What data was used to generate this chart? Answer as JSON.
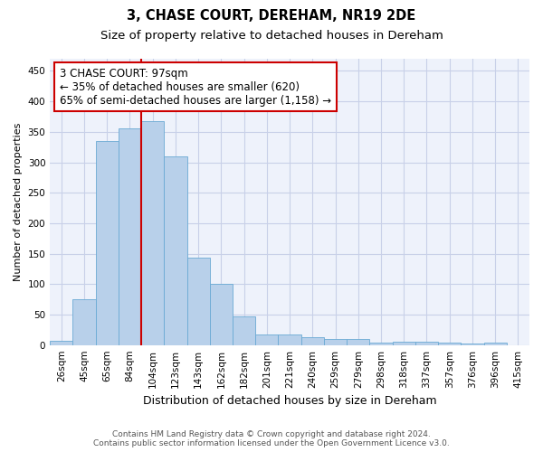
{
  "title": "3, CHASE COURT, DEREHAM, NR19 2DE",
  "subtitle": "Size of property relative to detached houses in Dereham",
  "xlabel": "Distribution of detached houses by size in Dereham",
  "ylabel": "Number of detached properties",
  "categories": [
    "26sqm",
    "45sqm",
    "65sqm",
    "84sqm",
    "104sqm",
    "123sqm",
    "143sqm",
    "162sqm",
    "182sqm",
    "201sqm",
    "221sqm",
    "240sqm",
    "259sqm",
    "279sqm",
    "298sqm",
    "318sqm",
    "337sqm",
    "357sqm",
    "376sqm",
    "396sqm",
    "415sqm"
  ],
  "values": [
    7,
    75,
    335,
    355,
    367,
    310,
    143,
    100,
    47,
    17,
    17,
    13,
    10,
    10,
    4,
    6,
    6,
    4,
    2,
    4,
    0
  ],
  "bar_color": "#b8d0ea",
  "bar_edge_color": "#6aaad4",
  "vline_x_index": 3.5,
  "annotation_line1": "3 CHASE COURT: 97sqm",
  "annotation_line2": "← 35% of detached houses are smaller (620)",
  "annotation_line3": "65% of semi-detached houses are larger (1,158) →",
  "annotation_box_color": "#ffffff",
  "annotation_box_edge": "#cc0000",
  "vline_color": "#cc0000",
  "ylim": [
    0,
    470
  ],
  "yticks": [
    0,
    50,
    100,
    150,
    200,
    250,
    300,
    350,
    400,
    450
  ],
  "footer_line1": "Contains HM Land Registry data © Crown copyright and database right 2024.",
  "footer_line2": "Contains public sector information licensed under the Open Government Licence v3.0.",
  "background_color": "#eef2fb",
  "grid_color": "#c8d0e8",
  "title_fontsize": 10.5,
  "subtitle_fontsize": 9.5,
  "xlabel_fontsize": 9,
  "ylabel_fontsize": 8,
  "tick_fontsize": 7.5,
  "annotation_fontsize": 8.5,
  "footer_fontsize": 6.5
}
